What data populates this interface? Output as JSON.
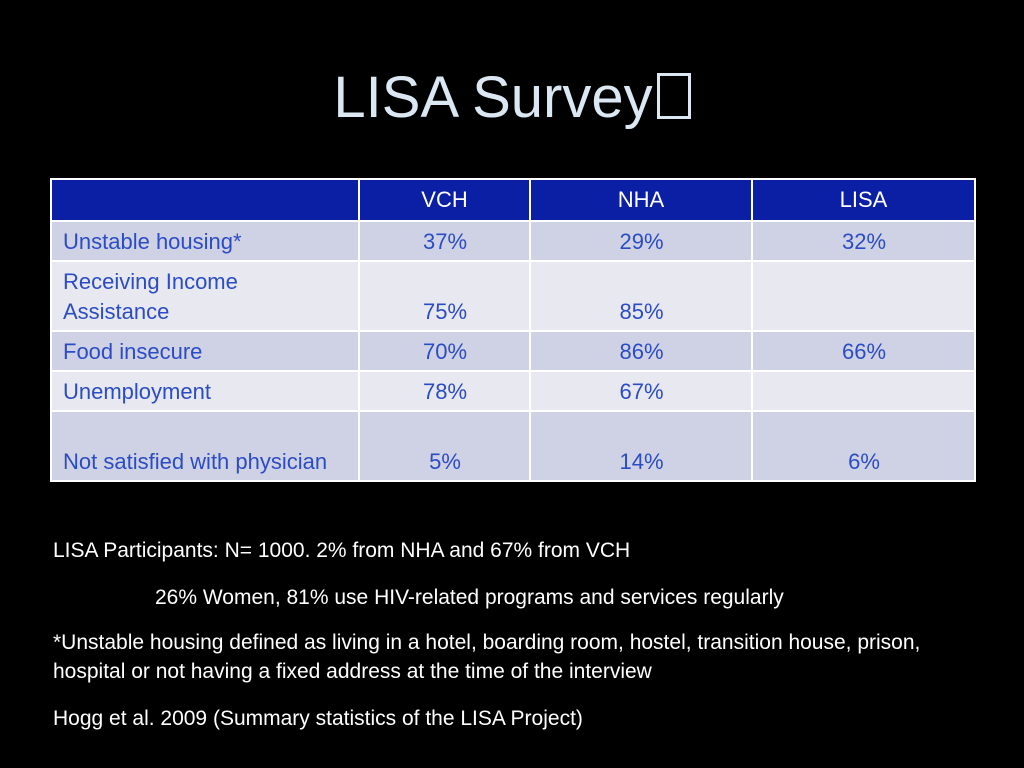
{
  "slide": {
    "title": "LISA Survey"
  },
  "table": {
    "headers": [
      "",
      "VCH",
      "NHA",
      "LISA"
    ],
    "rows": [
      {
        "label": "Unstable housing*",
        "vch": "37%",
        "nha": "29%",
        "lisa": "32%"
      },
      {
        "label": "Receiving Income Assistance",
        "vch": "75%",
        "nha": "85%",
        "lisa": ""
      },
      {
        "label": "Food insecure",
        "vch": "70%",
        "nha": "86%",
        "lisa": "66%"
      },
      {
        "label": "Unemployment",
        "vch": "78%",
        "nha": "67%",
        "lisa": ""
      },
      {
        "label": "Not satisfied with physician",
        "vch": "5%",
        "nha": "14%",
        "lisa": "6%"
      }
    ]
  },
  "notes": {
    "participants": "LISA Participants: N= 1000.  2% from NHA and 67% from VCH",
    "demographics": "26% Women, 81% use HIV-related programs and services regularly",
    "definition": "*Unstable housing defined as living in a hotel, boarding room, hostel, transition house, prison, hospital or not having a fixed address at the time of the interview",
    "citation": "Hogg et al. 2009 (Summary statistics of the LISA Project)"
  },
  "colors": {
    "background": "#000000",
    "title": "#dbe8f4",
    "header_fill": "#0b1fa5",
    "row_dark": "#cfd2e5",
    "row_light": "#e7e8f0",
    "cell_text": "#2b4cc4",
    "notes_text": "#ffffff"
  }
}
